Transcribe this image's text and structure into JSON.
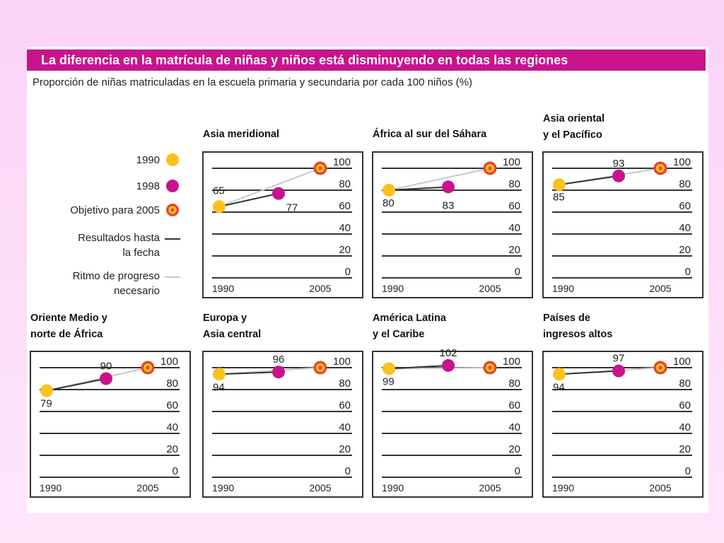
{
  "title": "La diferencia en la matrícula de niñas y niños está disminuyendo en todas las regiones",
  "subtitle": "Proporción de niñas matriculadas en la escuela primaria y secundaria por cada 100 niños (%)",
  "colors": {
    "banner": "#c8148c",
    "y1990": "#fcc21b",
    "y1998": "#c8148c",
    "target_ring": "#e8462a",
    "target_fill": "#fcc21b",
    "results_line": "#333333",
    "required_line": "#c8c8c8",
    "grid": "#333333"
  },
  "legend": {
    "y1990": "1990",
    "y1998": "1998",
    "target": "Objetivo para 2005",
    "results": [
      "Resultados hasta",
      "la fecha"
    ],
    "required": [
      "Ritmo de progreso",
      "necesario"
    ]
  },
  "chart_data": [
    {
      "type": "line",
      "title": [
        "Asia meridional"
      ],
      "values": {
        "1990": 65,
        "1998": 77,
        "2005": 100
      },
      "labels": {
        "1990": "65",
        "1998": "77"
      },
      "yticks": [
        "100",
        "80",
        "60",
        "40",
        "20",
        "0"
      ],
      "xticks": [
        "1990",
        "2005"
      ],
      "ylim": [
        0,
        100
      ]
    },
    {
      "type": "line",
      "title": [
        "África al sur del Sáhara"
      ],
      "values": {
        "1990": 80,
        "1998": 83,
        "2005": 100
      },
      "labels": {
        "1990": "80",
        "1998": "83"
      },
      "yticks": [
        "100",
        "80",
        "60",
        "40",
        "20",
        "0"
      ],
      "xticks": [
        "1990",
        "2005"
      ],
      "ylim": [
        0,
        100
      ]
    },
    {
      "type": "line",
      "title": [
        "Asia oriental",
        "y el Pacífico"
      ],
      "values": {
        "1990": 85,
        "1998": 93,
        "2005": 100
      },
      "labels": {
        "1990": "85",
        "1998": "93"
      },
      "yticks": [
        "100",
        "80",
        "60",
        "40",
        "20",
        "0"
      ],
      "xticks": [
        "1990",
        "2005"
      ],
      "ylim": [
        0,
        100
      ]
    },
    {
      "type": "line",
      "title": [
        "Oriente Medio y",
        "norte de África"
      ],
      "values": {
        "1990": 79,
        "1998": 90,
        "2005": 100
      },
      "labels": {
        "1990": "79",
        "1998": "90"
      },
      "yticks": [
        "100",
        "80",
        "60",
        "40",
        "20",
        "0"
      ],
      "xticks": [
        "1990",
        "2005"
      ],
      "ylim": [
        0,
        100
      ]
    },
    {
      "type": "line",
      "title": [
        "Europa y",
        "Asia central"
      ],
      "values": {
        "1990": 94,
        "1998": 96,
        "2005": 100
      },
      "labels": {
        "1990": "94",
        "1998": "96"
      },
      "yticks": [
        "100",
        "80",
        "60",
        "40",
        "20",
        "0"
      ],
      "xticks": [
        "1990",
        "2005"
      ],
      "ylim": [
        0,
        100
      ]
    },
    {
      "type": "line",
      "title": [
        "América Latina",
        "y el Caribe"
      ],
      "values": {
        "1990": 99,
        "1998": 102,
        "2005": 100
      },
      "labels": {
        "1990": "99",
        "1998": "102"
      },
      "yticks": [
        "100",
        "80",
        "60",
        "40",
        "20",
        "0"
      ],
      "xticks": [
        "1990",
        "2005"
      ],
      "ylim": [
        0,
        100
      ]
    },
    {
      "type": "line",
      "title": [
        "Países de",
        "ingresos altos"
      ],
      "values": {
        "1990": 94,
        "1998": 97,
        "2005": 100
      },
      "labels": {
        "1990": "94",
        "1998": "97"
      },
      "yticks": [
        "100",
        "80",
        "60",
        "40",
        "20",
        "0"
      ],
      "xticks": [
        "1990",
        "2005"
      ],
      "ylim": [
        0,
        100
      ]
    }
  ]
}
